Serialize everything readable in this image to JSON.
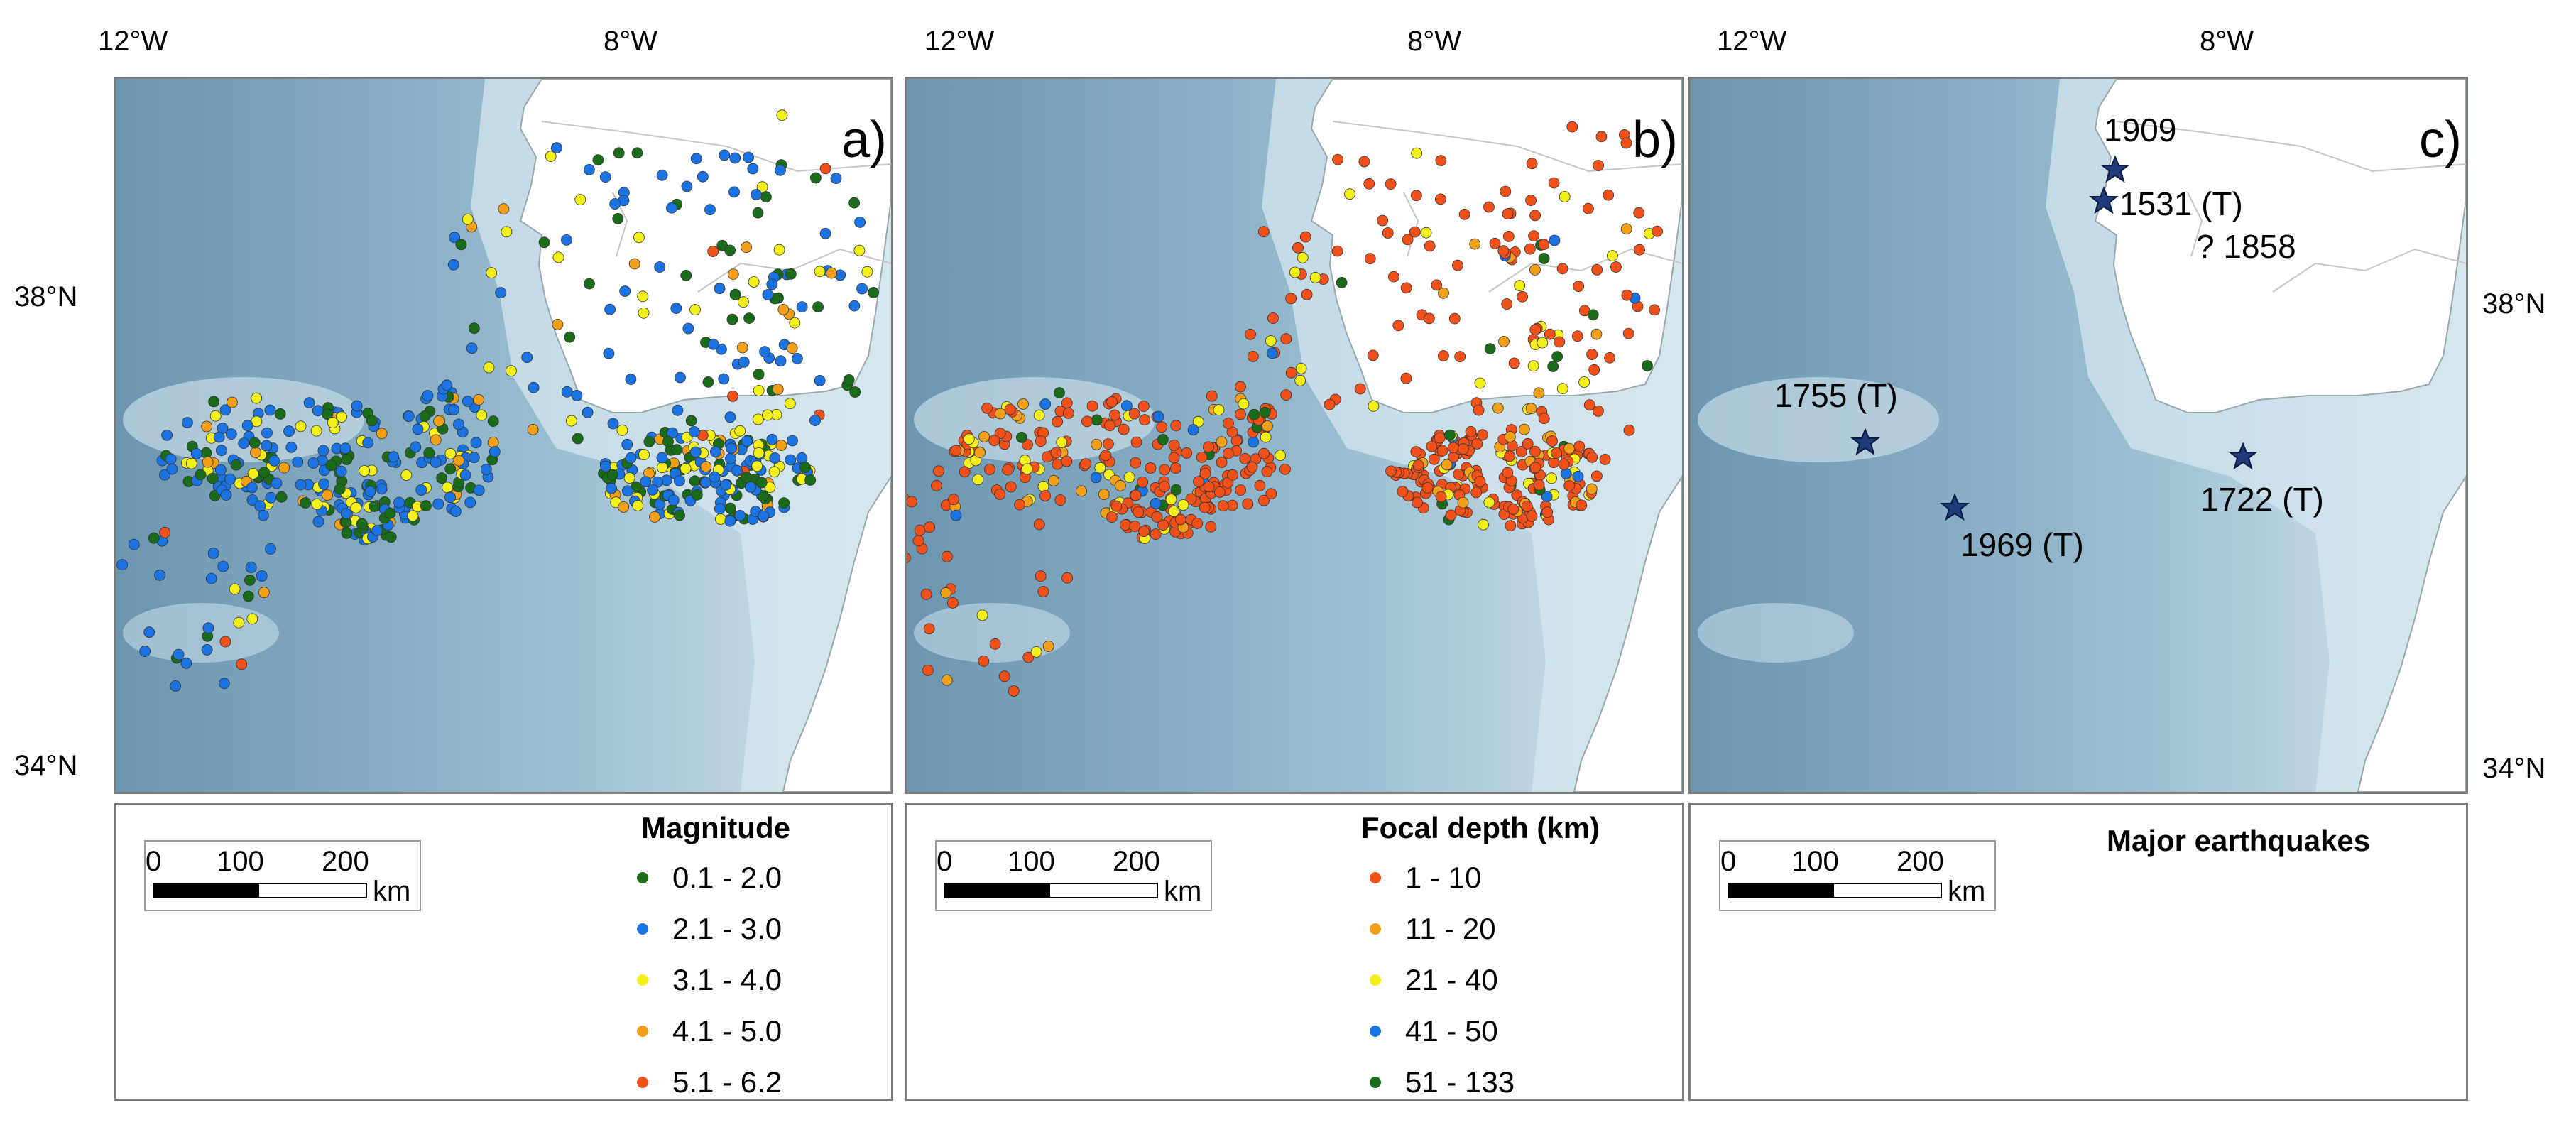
{
  "axis": {
    "top_ticks": [
      "12°W",
      "8°W"
    ],
    "lat_ticks": [
      "38°N",
      "34°N"
    ]
  },
  "colors": {
    "ocean_deep": "#6b95b0",
    "ocean_mid": "#98bccf",
    "shelf": "#d6e6ee",
    "land": "#ffffff",
    "mag": [
      "#1a6b1a",
      "#1a73e0",
      "#f2ef1a",
      "#f2a01a",
      "#f0501a"
    ],
    "depth": [
      "#f0501a",
      "#f2a01a",
      "#f2ef1a",
      "#1a73e0",
      "#1a6b1a"
    ],
    "star_fill": "#1f3a7a"
  },
  "scale": {
    "ticks": [
      "0",
      "100",
      "200"
    ],
    "unit": "km"
  },
  "panels": [
    {
      "letter": "a)",
      "legend_title": "Magnitude",
      "legend_items": [
        "0.1 - 2.0",
        "2.1 - 3.0",
        "3.1 - 4.0",
        "4.1 - 5.0",
        "5.1 - 6.2"
      ]
    },
    {
      "letter": "b)",
      "legend_title": "Focal depth (km)",
      "legend_items": [
        "1 - 10",
        "11 - 20",
        "21 - 40",
        "41 - 50",
        "51 - 133"
      ]
    },
    {
      "letter": "c)",
      "legend_title": "Major earthquakes",
      "events": [
        "1909",
        "1531 (T)",
        "? 1858",
        "1755 (T)",
        "1969 (T)",
        "1722 (T)"
      ]
    }
  ]
}
